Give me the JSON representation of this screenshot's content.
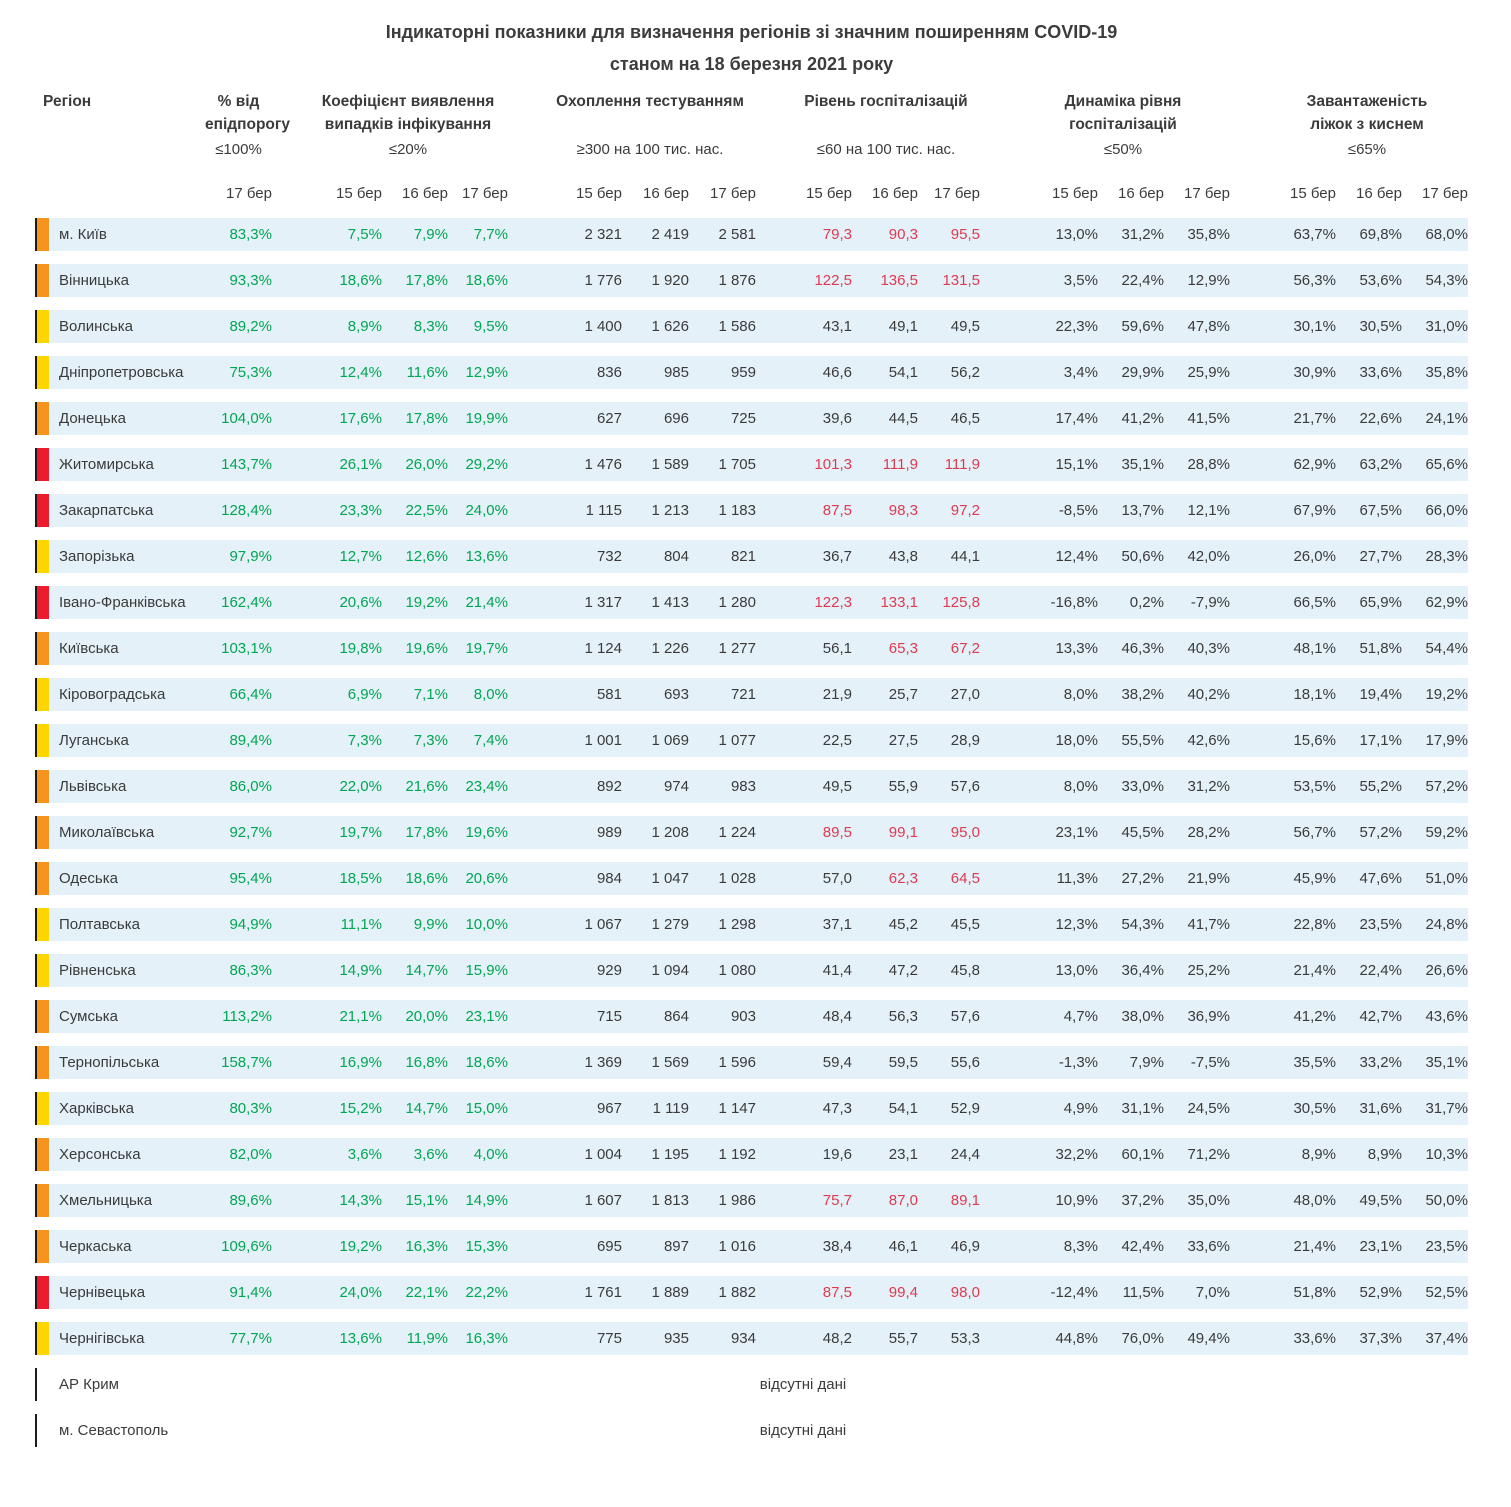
{
  "chart_data": {
    "type": "table",
    "title_lines": [
      "Індикаторні показники для визначення регіонів зі значним поширенням COVID-19",
      "станом на 18 березня 2021 року"
    ],
    "header": {
      "region": "Регіон",
      "groups": [
        {
          "title": [
            "% від",
            "епідпорогу"
          ],
          "threshold": "≤100%",
          "dates": [
            "17 бер"
          ]
        },
        {
          "title": [
            "Коефіцієнт виявлення",
            "випадків інфікування"
          ],
          "threshold": "≤20%",
          "dates": [
            "15 бер",
            "16 бер",
            "17 бер"
          ]
        },
        {
          "title": [
            "Охоплення тестуванням"
          ],
          "threshold": "≥300 на 100 тис. нас.",
          "dates": [
            "15 бер",
            "16 бер",
            "17 бер"
          ]
        },
        {
          "title": [
            "Рівень госпіталізацій"
          ],
          "threshold": "≤60 на 100 тис. нас.",
          "dates": [
            "15 бер",
            "16 бер",
            "17 бер"
          ]
        },
        {
          "title": [
            "Динаміка рівня",
            "госпіталізацій"
          ],
          "threshold": "≤50%",
          "dates": [
            "15 бер",
            "16 бер",
            "17 бер"
          ]
        },
        {
          "title": [
            "Завантаженість",
            "ліжок з киснем"
          ],
          "threshold": "≤65%",
          "dates": [
            "15 бер",
            "16 бер",
            "17 бер"
          ]
        }
      ]
    },
    "rows": [
      {
        "region": "м. Київ",
        "level": "orange",
        "epid": "83,3%",
        "detect": [
          "7,5%",
          "7,9%",
          "7,7%"
        ],
        "testing": [
          "2 321",
          "2 419",
          "2 581"
        ],
        "hosp": [
          "79,3",
          "90,3",
          "95,5"
        ],
        "hosp_red": [
          true,
          true,
          true
        ],
        "dynamics": [
          "13,0%",
          "31,2%",
          "35,8%"
        ],
        "beds": [
          "63,7%",
          "69,8%",
          "68,0%"
        ]
      },
      {
        "region": "Вінницька",
        "level": "orange",
        "epid": "93,3%",
        "detect": [
          "18,6%",
          "17,8%",
          "18,6%"
        ],
        "testing": [
          "1 776",
          "1 920",
          "1 876"
        ],
        "hosp": [
          "122,5",
          "136,5",
          "131,5"
        ],
        "hosp_red": [
          true,
          true,
          true
        ],
        "dynamics": [
          "3,5%",
          "22,4%",
          "12,9%"
        ],
        "beds": [
          "56,3%",
          "53,6%",
          "54,3%"
        ]
      },
      {
        "region": "Волинська",
        "level": "yellow",
        "epid": "89,2%",
        "detect": [
          "8,9%",
          "8,3%",
          "9,5%"
        ],
        "testing": [
          "1 400",
          "1 626",
          "1 586"
        ],
        "hosp": [
          "43,1",
          "49,1",
          "49,5"
        ],
        "hosp_red": [
          false,
          false,
          false
        ],
        "dynamics": [
          "22,3%",
          "59,6%",
          "47,8%"
        ],
        "beds": [
          "30,1%",
          "30,5%",
          "31,0%"
        ]
      },
      {
        "region": "Дніпропетровська",
        "level": "yellow",
        "epid": "75,3%",
        "detect": [
          "12,4%",
          "11,6%",
          "12,9%"
        ],
        "testing": [
          "836",
          "985",
          "959"
        ],
        "hosp": [
          "46,6",
          "54,1",
          "56,2"
        ],
        "hosp_red": [
          false,
          false,
          false
        ],
        "dynamics": [
          "3,4%",
          "29,9%",
          "25,9%"
        ],
        "beds": [
          "30,9%",
          "33,6%",
          "35,8%"
        ]
      },
      {
        "region": "Донецька",
        "level": "orange",
        "epid": "104,0%",
        "detect": [
          "17,6%",
          "17,8%",
          "19,9%"
        ],
        "testing": [
          "627",
          "696",
          "725"
        ],
        "hosp": [
          "39,6",
          "44,5",
          "46,5"
        ],
        "hosp_red": [
          false,
          false,
          false
        ],
        "dynamics": [
          "17,4%",
          "41,2%",
          "41,5%"
        ],
        "beds": [
          "21,7%",
          "22,6%",
          "24,1%"
        ]
      },
      {
        "region": "Житомирська",
        "level": "red",
        "epid": "143,7%",
        "detect": [
          "26,1%",
          "26,0%",
          "29,2%"
        ],
        "testing": [
          "1 476",
          "1 589",
          "1 705"
        ],
        "hosp": [
          "101,3",
          "111,9",
          "111,9"
        ],
        "hosp_red": [
          true,
          true,
          true
        ],
        "dynamics": [
          "15,1%",
          "35,1%",
          "28,8%"
        ],
        "beds": [
          "62,9%",
          "63,2%",
          "65,6%"
        ]
      },
      {
        "region": "Закарпатська",
        "level": "red",
        "epid": "128,4%",
        "detect": [
          "23,3%",
          "22,5%",
          "24,0%"
        ],
        "testing": [
          "1 115",
          "1 213",
          "1 183"
        ],
        "hosp": [
          "87,5",
          "98,3",
          "97,2"
        ],
        "hosp_red": [
          true,
          true,
          true
        ],
        "dynamics": [
          "-8,5%",
          "13,7%",
          "12,1%"
        ],
        "beds": [
          "67,9%",
          "67,5%",
          "66,0%"
        ]
      },
      {
        "region": "Запорізька",
        "level": "yellow",
        "epid": "97,9%",
        "detect": [
          "12,7%",
          "12,6%",
          "13,6%"
        ],
        "testing": [
          "732",
          "804",
          "821"
        ],
        "hosp": [
          "36,7",
          "43,8",
          "44,1"
        ],
        "hosp_red": [
          false,
          false,
          false
        ],
        "dynamics": [
          "12,4%",
          "50,6%",
          "42,0%"
        ],
        "beds": [
          "26,0%",
          "27,7%",
          "28,3%"
        ]
      },
      {
        "region": "Івано-Франківська",
        "level": "red",
        "epid": "162,4%",
        "detect": [
          "20,6%",
          "19,2%",
          "21,4%"
        ],
        "testing": [
          "1 317",
          "1 413",
          "1 280"
        ],
        "hosp": [
          "122,3",
          "133,1",
          "125,8"
        ],
        "hosp_red": [
          true,
          true,
          true
        ],
        "dynamics": [
          "-16,8%",
          "0,2%",
          "-7,9%"
        ],
        "beds": [
          "66,5%",
          "65,9%",
          "62,9%"
        ]
      },
      {
        "region": "Київська",
        "level": "orange",
        "epid": "103,1%",
        "detect": [
          "19,8%",
          "19,6%",
          "19,7%"
        ],
        "testing": [
          "1 124",
          "1 226",
          "1 277"
        ],
        "hosp": [
          "56,1",
          "65,3",
          "67,2"
        ],
        "hosp_red": [
          false,
          true,
          true
        ],
        "dynamics": [
          "13,3%",
          "46,3%",
          "40,3%"
        ],
        "beds": [
          "48,1%",
          "51,8%",
          "54,4%"
        ]
      },
      {
        "region": "Кіровоградська",
        "level": "yellow",
        "epid": "66,4%",
        "detect": [
          "6,9%",
          "7,1%",
          "8,0%"
        ],
        "testing": [
          "581",
          "693",
          "721"
        ],
        "hosp": [
          "21,9",
          "25,7",
          "27,0"
        ],
        "hosp_red": [
          false,
          false,
          false
        ],
        "dynamics": [
          "8,0%",
          "38,2%",
          "40,2%"
        ],
        "beds": [
          "18,1%",
          "19,4%",
          "19,2%"
        ]
      },
      {
        "region": "Луганська",
        "level": "yellow",
        "epid": "89,4%",
        "detect": [
          "7,3%",
          "7,3%",
          "7,4%"
        ],
        "testing": [
          "1 001",
          "1 069",
          "1 077"
        ],
        "hosp": [
          "22,5",
          "27,5",
          "28,9"
        ],
        "hosp_red": [
          false,
          false,
          false
        ],
        "dynamics": [
          "18,0%",
          "55,5%",
          "42,6%"
        ],
        "beds": [
          "15,6%",
          "17,1%",
          "17,9%"
        ]
      },
      {
        "region": "Львівська",
        "level": "orange",
        "epid": "86,0%",
        "detect": [
          "22,0%",
          "21,6%",
          "23,4%"
        ],
        "testing": [
          "892",
          "974",
          "983"
        ],
        "hosp": [
          "49,5",
          "55,9",
          "57,6"
        ],
        "hosp_red": [
          false,
          false,
          false
        ],
        "dynamics": [
          "8,0%",
          "33,0%",
          "31,2%"
        ],
        "beds": [
          "53,5%",
          "55,2%",
          "57,2%"
        ]
      },
      {
        "region": "Миколаївська",
        "level": "orange",
        "epid": "92,7%",
        "detect": [
          "19,7%",
          "17,8%",
          "19,6%"
        ],
        "testing": [
          "989",
          "1 208",
          "1 224"
        ],
        "hosp": [
          "89,5",
          "99,1",
          "95,0"
        ],
        "hosp_red": [
          true,
          true,
          true
        ],
        "dynamics": [
          "23,1%",
          "45,5%",
          "28,2%"
        ],
        "beds": [
          "56,7%",
          "57,2%",
          "59,2%"
        ]
      },
      {
        "region": "Одеська",
        "level": "orange",
        "epid": "95,4%",
        "detect": [
          "18,5%",
          "18,6%",
          "20,6%"
        ],
        "testing": [
          "984",
          "1 047",
          "1 028"
        ],
        "hosp": [
          "57,0",
          "62,3",
          "64,5"
        ],
        "hosp_red": [
          false,
          true,
          true
        ],
        "dynamics": [
          "11,3%",
          "27,2%",
          "21,9%"
        ],
        "beds": [
          "45,9%",
          "47,6%",
          "51,0%"
        ]
      },
      {
        "region": "Полтавська",
        "level": "yellow",
        "epid": "94,9%",
        "detect": [
          "11,1%",
          "9,9%",
          "10,0%"
        ],
        "testing": [
          "1 067",
          "1 279",
          "1 298"
        ],
        "hosp": [
          "37,1",
          "45,2",
          "45,5"
        ],
        "hosp_red": [
          false,
          false,
          false
        ],
        "dynamics": [
          "12,3%",
          "54,3%",
          "41,7%"
        ],
        "beds": [
          "22,8%",
          "23,5%",
          "24,8%"
        ]
      },
      {
        "region": "Рівненська",
        "level": "yellow",
        "epid": "86,3%",
        "detect": [
          "14,9%",
          "14,7%",
          "15,9%"
        ],
        "testing": [
          "929",
          "1 094",
          "1 080"
        ],
        "hosp": [
          "41,4",
          "47,2",
          "45,8"
        ],
        "hosp_red": [
          false,
          false,
          false
        ],
        "dynamics": [
          "13,0%",
          "36,4%",
          "25,2%"
        ],
        "beds": [
          "21,4%",
          "22,4%",
          "26,6%"
        ]
      },
      {
        "region": "Сумська",
        "level": "orange",
        "epid": "113,2%",
        "detect": [
          "21,1%",
          "20,0%",
          "23,1%"
        ],
        "testing": [
          "715",
          "864",
          "903"
        ],
        "hosp": [
          "48,4",
          "56,3",
          "57,6"
        ],
        "hosp_red": [
          false,
          false,
          false
        ],
        "dynamics": [
          "4,7%",
          "38,0%",
          "36,9%"
        ],
        "beds": [
          "41,2%",
          "42,7%",
          "43,6%"
        ]
      },
      {
        "region": "Тернопільська",
        "level": "orange",
        "epid": "158,7%",
        "detect": [
          "16,9%",
          "16,8%",
          "18,6%"
        ],
        "testing": [
          "1 369",
          "1 569",
          "1 596"
        ],
        "hosp": [
          "59,4",
          "59,5",
          "55,6"
        ],
        "hosp_red": [
          false,
          false,
          false
        ],
        "dynamics": [
          "-1,3%",
          "7,9%",
          "-7,5%"
        ],
        "beds": [
          "35,5%",
          "33,2%",
          "35,1%"
        ]
      },
      {
        "region": "Харківська",
        "level": "yellow",
        "epid": "80,3%",
        "detect": [
          "15,2%",
          "14,7%",
          "15,0%"
        ],
        "testing": [
          "967",
          "1 119",
          "1 147"
        ],
        "hosp": [
          "47,3",
          "54,1",
          "52,9"
        ],
        "hosp_red": [
          false,
          false,
          false
        ],
        "dynamics": [
          "4,9%",
          "31,1%",
          "24,5%"
        ],
        "beds": [
          "30,5%",
          "31,6%",
          "31,7%"
        ]
      },
      {
        "region": "Херсонська",
        "level": "orange",
        "epid": "82,0%",
        "detect": [
          "3,6%",
          "3,6%",
          "4,0%"
        ],
        "testing": [
          "1 004",
          "1 195",
          "1 192"
        ],
        "hosp": [
          "19,6",
          "23,1",
          "24,4"
        ],
        "hosp_red": [
          false,
          false,
          false
        ],
        "dynamics": [
          "32,2%",
          "60,1%",
          "71,2%"
        ],
        "beds": [
          "8,9%",
          "8,9%",
          "10,3%"
        ]
      },
      {
        "region": "Хмельницька",
        "level": "orange",
        "epid": "89,6%",
        "detect": [
          "14,3%",
          "15,1%",
          "14,9%"
        ],
        "testing": [
          "1 607",
          "1 813",
          "1 986"
        ],
        "hosp": [
          "75,7",
          "87,0",
          "89,1"
        ],
        "hosp_red": [
          true,
          true,
          true
        ],
        "dynamics": [
          "10,9%",
          "37,2%",
          "35,0%"
        ],
        "beds": [
          "48,0%",
          "49,5%",
          "50,0%"
        ]
      },
      {
        "region": "Черкаська",
        "level": "orange",
        "epid": "109,6%",
        "detect": [
          "19,2%",
          "16,3%",
          "15,3%"
        ],
        "testing": [
          "695",
          "897",
          "1 016"
        ],
        "hosp": [
          "38,4",
          "46,1",
          "46,9"
        ],
        "hosp_red": [
          false,
          false,
          false
        ],
        "dynamics": [
          "8,3%",
          "42,4%",
          "33,6%"
        ],
        "beds": [
          "21,4%",
          "23,1%",
          "23,5%"
        ]
      },
      {
        "region": "Чернівецька",
        "level": "red",
        "epid": "91,4%",
        "detect": [
          "24,0%",
          "22,1%",
          "22,2%"
        ],
        "testing": [
          "1 761",
          "1 889",
          "1 882"
        ],
        "hosp": [
          "87,5",
          "99,4",
          "98,0"
        ],
        "hosp_red": [
          true,
          true,
          true
        ],
        "dynamics": [
          "-12,4%",
          "11,5%",
          "7,0%"
        ],
        "beds": [
          "51,8%",
          "52,9%",
          "52,5%"
        ]
      },
      {
        "region": "Чернігівська",
        "level": "yellow",
        "epid": "77,7%",
        "detect": [
          "13,6%",
          "11,9%",
          "16,3%"
        ],
        "testing": [
          "775",
          "935",
          "934"
        ],
        "hosp": [
          "48,2",
          "55,7",
          "53,3"
        ],
        "hosp_red": [
          false,
          false,
          false
        ],
        "dynamics": [
          "44,8%",
          "76,0%",
          "49,4%"
        ],
        "beds": [
          "33,6%",
          "37,3%",
          "37,4%"
        ]
      }
    ],
    "no_data_rows": [
      {
        "region": "АР Крим",
        "note": "відсутні дані"
      },
      {
        "region": "м. Севастополь",
        "note": "відсутні дані"
      }
    ]
  },
  "colors": {
    "row_bg": "#e4f1f8",
    "green_value": "#00a651",
    "red_value": "#e03a50",
    "chip_orange": "#f7941d",
    "chip_yellow": "#ffd500",
    "chip_red": "#ec1c2e"
  }
}
